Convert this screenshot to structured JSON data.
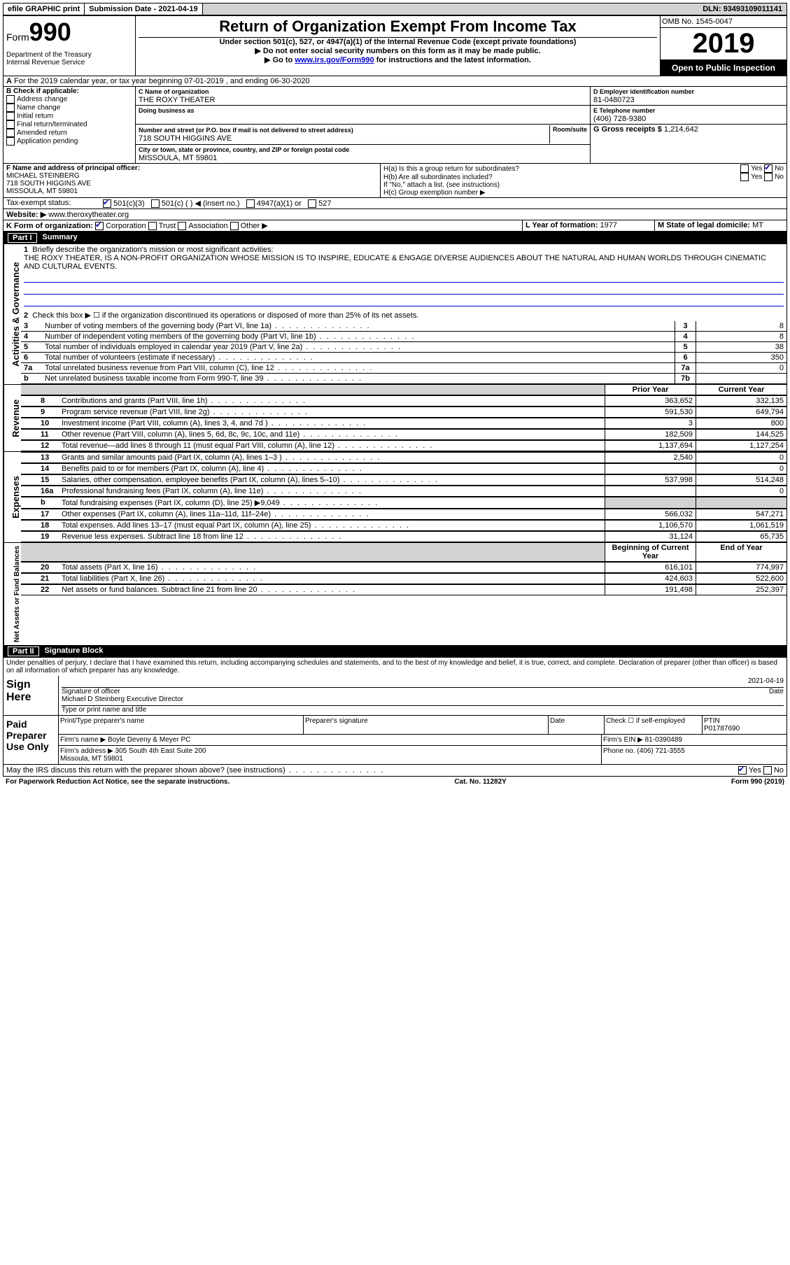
{
  "topbar": {
    "efile": "efile GRAPHIC print",
    "submission_label": "Submission Date - ",
    "submission_date": "2021-04-19",
    "dln_label": "DLN: ",
    "dln": "93493109011141"
  },
  "header": {
    "form_word": "Form",
    "form_no": "990",
    "dept": "Department of the Treasury\nInternal Revenue Service",
    "title": "Return of Organization Exempt From Income Tax",
    "subtitle": "Under section 501(c), 527, or 4947(a)(1) of the Internal Revenue Code (except private foundations)",
    "note1": "Do not enter social security numbers on this form as it may be made public.",
    "note2_pre": "Go to ",
    "note2_link": "www.irs.gov/Form990",
    "note2_post": " for instructions and the latest information.",
    "omb": "OMB No. 1545-0047",
    "year": "2019",
    "open_public": "Open to Public Inspection"
  },
  "line_a": "For the 2019 calendar year, or tax year beginning 07-01-2019    , and ending 06-30-2020",
  "box_b": {
    "title": "B Check if applicable:",
    "items": [
      "Address change",
      "Name change",
      "Initial return",
      "Final return/terminated",
      "Amended return",
      "Application pending"
    ]
  },
  "box_c": {
    "label_name": "C Name of organization",
    "name": "THE ROXY THEATER",
    "dba_label": "Doing business as",
    "addr_label": "Number and street (or P.O. box if mail is not delivered to street address)",
    "room_label": "Room/suite",
    "addr": "718 SOUTH HIGGINS AVE",
    "city_label": "City or town, state or province, country, and ZIP or foreign postal code",
    "city": "MISSOULA, MT  59801"
  },
  "box_d": {
    "label": "D Employer identification number",
    "value": "81-0480723"
  },
  "box_e": {
    "label": "E Telephone number",
    "value": "(406) 728-9380"
  },
  "box_g": {
    "label": "G Gross receipts $ ",
    "value": "1,214,642"
  },
  "box_f": {
    "label": "F  Name and address of principal officer:",
    "name": "MICHAEL STEINBERG",
    "addr": "718 SOUTH HIGGINS AVE",
    "city": "MISSOULA, MT  59801"
  },
  "box_h": {
    "ha": "H(a)  Is this a group return for subordinates?",
    "hb": "H(b)  Are all subordinates included?",
    "hnote": "If \"No,\" attach a list. (see instructions)",
    "hc": "H(c)  Group exemption number ▶",
    "yes": "Yes",
    "no": "No"
  },
  "status": {
    "label": "Tax-exempt status:",
    "opts": [
      "501(c)(3)",
      "501(c) (  ) ◀ (insert no.)",
      "4947(a)(1) or",
      "527"
    ]
  },
  "website": {
    "label": "Website: ▶",
    "value": "www.theroxytheater.org"
  },
  "box_k": {
    "label": "K Form of organization:",
    "opts": [
      "Corporation",
      "Trust",
      "Association",
      "Other ▶"
    ]
  },
  "box_l": {
    "label": "L Year of formation: ",
    "value": "1977"
  },
  "box_m": {
    "label": "M State of legal domicile: ",
    "value": "MT"
  },
  "part1": {
    "title": "Summary",
    "q1_label": "Briefly describe the organization's mission or most significant activities:",
    "q1_text": "THE ROXY THEATER, IS A NON-PROFIT ORGANIZATION WHOSE MISSION IS TO INSPIRE, EDUCATE & ENGAGE DIVERSE AUDIENCES ABOUT THE NATURAL AND HUMAN WORLDS THROUGH CINEMATIC AND CULTURAL EVENTS.",
    "q2": "Check this box ▶ ☐ if the organization discontinued its operations or disposed of more than 25% of its net assets.",
    "side_labels": [
      "Activities & Governance",
      "Revenue",
      "Expenses",
      "Net Assets or Fund Balances"
    ],
    "col_headers": {
      "prior": "Prior Year",
      "current": "Current Year",
      "begin": "Beginning of Current Year",
      "end": "End of Year"
    },
    "rows_gov": [
      {
        "n": "3",
        "t": "Number of voting members of the governing body (Part VI, line 1a)",
        "box": "3",
        "v": "8"
      },
      {
        "n": "4",
        "t": "Number of independent voting members of the governing body (Part VI, line 1b)",
        "box": "4",
        "v": "8"
      },
      {
        "n": "5",
        "t": "Total number of individuals employed in calendar year 2019 (Part V, line 2a)",
        "box": "5",
        "v": "38"
      },
      {
        "n": "6",
        "t": "Total number of volunteers (estimate if necessary)",
        "box": "6",
        "v": "350"
      },
      {
        "n": "7a",
        "t": "Total unrelated business revenue from Part VIII, column (C), line 12",
        "box": "7a",
        "v": "0"
      },
      {
        "n": "b",
        "t": "Net unrelated business taxable income from Form 990-T, line 39",
        "box": "7b",
        "v": ""
      }
    ],
    "rows_rev": [
      {
        "n": "8",
        "t": "Contributions and grants (Part VIII, line 1h)",
        "p": "363,652",
        "c": "332,135"
      },
      {
        "n": "9",
        "t": "Program service revenue (Part VIII, line 2g)",
        "p": "591,530",
        "c": "649,794"
      },
      {
        "n": "10",
        "t": "Investment income (Part VIII, column (A), lines 3, 4, and 7d )",
        "p": "3",
        "c": "800"
      },
      {
        "n": "11",
        "t": "Other revenue (Part VIII, column (A), lines 5, 6d, 8c, 9c, 10c, and 11e)",
        "p": "182,509",
        "c": "144,525"
      },
      {
        "n": "12",
        "t": "Total revenue—add lines 8 through 11 (must equal Part VIII, column (A), line 12)",
        "p": "1,137,694",
        "c": "1,127,254"
      }
    ],
    "rows_exp": [
      {
        "n": "13",
        "t": "Grants and similar amounts paid (Part IX, column (A), lines 1–3 )",
        "p": "2,540",
        "c": "0"
      },
      {
        "n": "14",
        "t": "Benefits paid to or for members (Part IX, column (A), line 4)",
        "p": "",
        "c": "0"
      },
      {
        "n": "15",
        "t": "Salaries, other compensation, employee benefits (Part IX, column (A), lines 5–10)",
        "p": "537,998",
        "c": "514,248"
      },
      {
        "n": "16a",
        "t": "Professional fundraising fees (Part IX, column (A), line 11e)",
        "p": "",
        "c": "0"
      },
      {
        "n": "b",
        "t": "Total fundraising expenses (Part IX, column (D), line 25) ▶9,049",
        "p": "grey",
        "c": "grey"
      },
      {
        "n": "17",
        "t": "Other expenses (Part IX, column (A), lines 11a–11d, 11f–24e)",
        "p": "566,032",
        "c": "547,271"
      },
      {
        "n": "18",
        "t": "Total expenses. Add lines 13–17 (must equal Part IX, column (A), line 25)",
        "p": "1,106,570",
        "c": "1,061,519"
      },
      {
        "n": "19",
        "t": "Revenue less expenses. Subtract line 18 from line 12",
        "p": "31,124",
        "c": "65,735"
      }
    ],
    "rows_net": [
      {
        "n": "20",
        "t": "Total assets (Part X, line 16)",
        "p": "616,101",
        "c": "774,997"
      },
      {
        "n": "21",
        "t": "Total liabilities (Part X, line 26)",
        "p": "424,603",
        "c": "522,600"
      },
      {
        "n": "22",
        "t": "Net assets or fund balances. Subtract line 21 from line 20",
        "p": "191,498",
        "c": "252,397"
      }
    ]
  },
  "part2": {
    "title": "Signature Block",
    "penalty": "Under penalties of perjury, I declare that I have examined this return, including accompanying schedules and statements, and to the best of my knowledge and belief, it is true, correct, and complete. Declaration of preparer (other than officer) is based on all information of which preparer has any knowledge.",
    "sign_here": "Sign Here",
    "sig_officer": "Signature of officer",
    "sig_date_label": "Date",
    "sig_date": "2021-04-19",
    "officer_name": "Michael D Steinberg  Executive Director",
    "officer_type": "Type or print name and title",
    "paid_prep": "Paid Preparer Use Only",
    "prep_name_label": "Print/Type preparer's name",
    "prep_sig_label": "Preparer's signature",
    "date_label": "Date",
    "check_self": "Check ☐ if self-employed",
    "ptin_label": "PTIN",
    "ptin": "P01787690",
    "firm_name_label": "Firm's name   ▶",
    "firm_name": "Boyle Deveny & Meyer PC",
    "firm_ein_label": "Firm's EIN ▶",
    "firm_ein": "81-0390489",
    "firm_addr_label": "Firm's address ▶",
    "firm_addr": "305 South 4th East Suite 200",
    "firm_city": "Missoula, MT  59801",
    "phone_label": "Phone no.",
    "phone": "(406) 721-3555",
    "discuss": "May the IRS discuss this return with the preparer shown above? (see instructions)"
  },
  "footer": {
    "pra": "For Paperwork Reduction Act Notice, see the separate instructions.",
    "cat": "Cat. No. 11282Y",
    "form": "Form 990 (2019)"
  }
}
